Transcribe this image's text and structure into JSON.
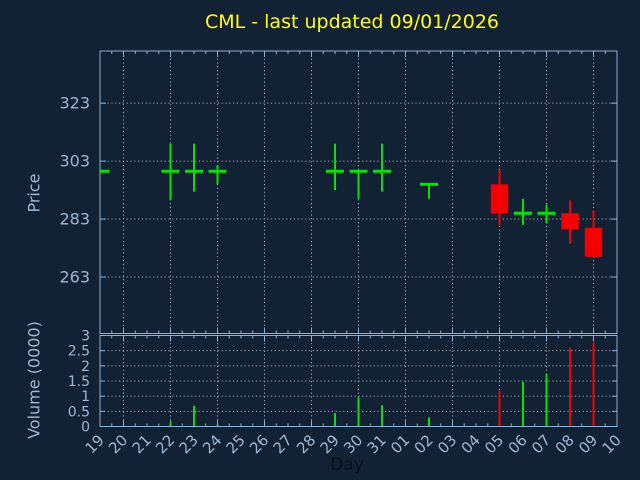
{
  "title": "CML - last updated 09/01/2026",
  "colors": {
    "background": "#132135",
    "axis": "#8ab0d8",
    "tick_label": "#9db8d4",
    "grid": "#bcc5cd",
    "title": "#ffff00",
    "up": "#00e400",
    "down": "#f40000",
    "xlabel_text": "#0a1018"
  },
  "chart_data": [
    {
      "type": "candlestick",
      "ylabel": "Price",
      "yticks": [
        263,
        283,
        303,
        323
      ],
      "ylim": [
        243.5,
        341
      ],
      "grid": "on",
      "categories": [
        "19",
        "20",
        "21",
        "22",
        "23",
        "24",
        "25",
        "26",
        "27",
        "28",
        "29",
        "30",
        "31",
        "01",
        "02",
        "03",
        "04",
        "05",
        "06",
        "07",
        "08",
        "09",
        "10"
      ],
      "grid_days": [
        "20",
        "22",
        "24",
        "26",
        "28",
        "30",
        "01",
        "03",
        "05",
        "07",
        "09"
      ],
      "candles": [
        {
          "day": "19",
          "open": 299.5,
          "high": 299.5,
          "low": 299.5,
          "close": 299.5,
          "direction": "up"
        },
        {
          "day": "22",
          "open": 299.5,
          "high": 309,
          "low": 289.5,
          "close": 299.5,
          "direction": "up"
        },
        {
          "day": "23",
          "open": 299.5,
          "high": 309,
          "low": 292.5,
          "close": 299.5,
          "direction": "up"
        },
        {
          "day": "24",
          "open": 299.5,
          "high": 301.5,
          "low": 295,
          "close": 299.5,
          "direction": "up"
        },
        {
          "day": "29",
          "open": 299.5,
          "high": 309,
          "low": 293,
          "close": 299.5,
          "direction": "up"
        },
        {
          "day": "30",
          "open": 299.5,
          "high": 299.5,
          "low": 290,
          "close": 299.5,
          "direction": "up"
        },
        {
          "day": "31",
          "open": 299.5,
          "high": 309,
          "low": 292.5,
          "close": 299.5,
          "direction": "up"
        },
        {
          "day": "02",
          "open": 295,
          "high": 295,
          "low": 290,
          "close": 295,
          "direction": "up"
        },
        {
          "day": "05",
          "open": 295,
          "high": 300,
          "low": 281,
          "close": 285,
          "direction": "down"
        },
        {
          "day": "06",
          "open": 285,
          "high": 290,
          "low": 281,
          "close": 285,
          "direction": "up"
        },
        {
          "day": "07",
          "open": 285,
          "high": 288,
          "low": 281.5,
          "close": 285,
          "direction": "up"
        },
        {
          "day": "08",
          "open": 285,
          "high": 289.5,
          "low": 274.5,
          "close": 279.5,
          "direction": "down"
        },
        {
          "day": "09",
          "open": 280,
          "high": 286,
          "low": 270,
          "close": 270,
          "direction": "down"
        }
      ]
    },
    {
      "type": "bar",
      "ylabel": "Volume (0000)",
      "xlabel": "Day",
      "yticks": [
        0,
        0.5,
        1,
        1.5,
        2,
        2.5,
        3
      ],
      "ylim": [
        0,
        3
      ],
      "grid": "on",
      "bars": [
        {
          "day": "22",
          "value": 0.13,
          "direction": "up"
        },
        {
          "day": "23",
          "value": 0.68,
          "direction": "up"
        },
        {
          "day": "24",
          "value": 0.06,
          "direction": "up"
        },
        {
          "day": "29",
          "value": 0.44,
          "direction": "up"
        },
        {
          "day": "30",
          "value": 0.95,
          "direction": "up"
        },
        {
          "day": "31",
          "value": 0.7,
          "direction": "up"
        },
        {
          "day": "02",
          "value": 0.3,
          "direction": "up"
        },
        {
          "day": "05",
          "value": 1.18,
          "direction": "down"
        },
        {
          "day": "06",
          "value": 1.47,
          "direction": "up"
        },
        {
          "day": "07",
          "value": 1.72,
          "direction": "up"
        },
        {
          "day": "08",
          "value": 2.6,
          "direction": "down"
        },
        {
          "day": "09",
          "value": 2.77,
          "direction": "down"
        }
      ]
    }
  ]
}
